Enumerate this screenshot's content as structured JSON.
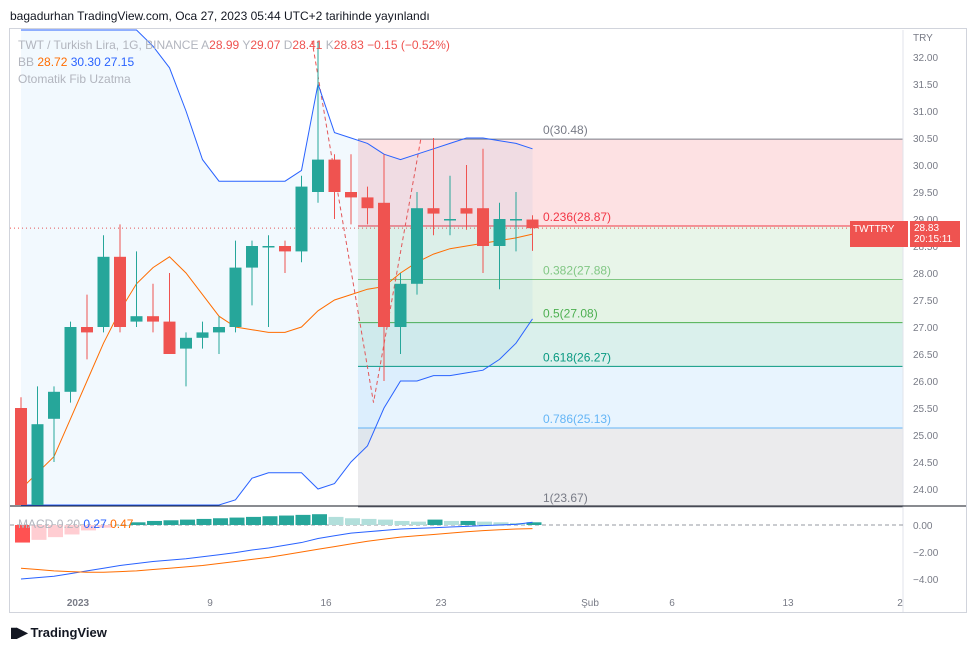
{
  "header": {
    "publish_line": "bagadurhan TradingView.com, Oca 27, 2023 05:44 UTC+2 tarihinde yayınlandı"
  },
  "legend": {
    "symbol": "TWT / Turkish Lira, 1G, BINANCE",
    "o_label": "A",
    "o_value": "28.99",
    "h_label": "Y",
    "h_value": "29.07",
    "l_label": "D",
    "l_value": "28.41",
    "c_label": "K",
    "c_value": "28.83",
    "change": "−0.15 (−0.52%)",
    "bb_label": "BB",
    "bb_basis": "28.72",
    "bb_upper": "30.30",
    "bb_lower": "27.15",
    "fib_label": "Otomatik Fib Uzatma"
  },
  "macd_legend": {
    "label": "MACD",
    "v1": "0.20",
    "v2": "0.27",
    "v3": "0.47"
  },
  "price_tag": {
    "symbol": "TWTTRY",
    "price": "28.83",
    "countdown": "20:15:11"
  },
  "currency": "TRY",
  "footer": {
    "brand": "TradingView"
  },
  "colors": {
    "up": "#26a69a",
    "down": "#ef5350",
    "bb_band": "#2962ff",
    "bb_basis": "#ff6d00",
    "fill": "#2962ff"
  },
  "chart_data": {
    "type": "candlestick",
    "y_axis_ticks": [
      "32.00",
      "31.50",
      "31.00",
      "30.50",
      "30.00",
      "29.50",
      "29.00",
      "28.50",
      "28.00",
      "27.50",
      "27.00",
      "26.50",
      "26.00",
      "25.50",
      "25.00",
      "24.50",
      "24.00"
    ],
    "x_axis_ticks": [
      "2023",
      "9",
      "16",
      "23",
      "Şub",
      "6",
      "13",
      "2"
    ],
    "macd_axis_ticks": [
      "0.00",
      "−2.00",
      "−4.00"
    ],
    "fib_levels": [
      {
        "label": "0(30.48)",
        "value": 30.48,
        "color": "#787b86"
      },
      {
        "label": "0.236(28.87)",
        "value": 28.87,
        "color": "#f23645"
      },
      {
        "label": "0.382(27.88)",
        "value": 27.88,
        "color": "#81c784"
      },
      {
        "label": "0.5(27.08)",
        "value": 27.08,
        "color": "#4caf50"
      },
      {
        "label": "0.618(26.27)",
        "value": 26.27,
        "color": "#089981"
      },
      {
        "label": "0.786(25.13)",
        "value": 25.13,
        "color": "#64b5f6"
      },
      {
        "label": "1(23.67)",
        "value": 23.67,
        "color": "#787b86"
      }
    ],
    "candles": [
      {
        "o": 25.5,
        "h": 25.7,
        "l": 23.7,
        "c": 23.7
      },
      {
        "o": 23.7,
        "h": 25.9,
        "l": 23.7,
        "c": 25.2
      },
      {
        "o": 25.3,
        "h": 25.9,
        "l": 24.5,
        "c": 25.8
      },
      {
        "o": 25.8,
        "h": 27.1,
        "l": 25.6,
        "c": 27.0
      },
      {
        "o": 27.0,
        "h": 27.6,
        "l": 26.4,
        "c": 26.9
      },
      {
        "o": 27.0,
        "h": 28.7,
        "l": 26.9,
        "c": 28.3
      },
      {
        "o": 28.3,
        "h": 28.9,
        "l": 26.9,
        "c": 27.0
      },
      {
        "o": 27.1,
        "h": 28.4,
        "l": 27.0,
        "c": 27.2
      },
      {
        "o": 27.2,
        "h": 27.8,
        "l": 26.9,
        "c": 27.1
      },
      {
        "o": 27.1,
        "h": 28.0,
        "l": 26.5,
        "c": 26.5
      },
      {
        "o": 26.6,
        "h": 26.9,
        "l": 25.9,
        "c": 26.8
      },
      {
        "o": 26.8,
        "h": 27.1,
        "l": 26.6,
        "c": 26.9
      },
      {
        "o": 26.9,
        "h": 27.2,
        "l": 26.5,
        "c": 27.0
      },
      {
        "o": 27.0,
        "h": 28.6,
        "l": 26.9,
        "c": 28.1
      },
      {
        "o": 28.1,
        "h": 28.6,
        "l": 27.4,
        "c": 28.5
      },
      {
        "o": 28.5,
        "h": 28.7,
        "l": 27.0,
        "c": 28.5
      },
      {
        "o": 28.5,
        "h": 28.6,
        "l": 28.0,
        "c": 28.4
      },
      {
        "o": 28.4,
        "h": 29.8,
        "l": 28.2,
        "c": 29.6
      },
      {
        "o": 29.5,
        "h": 32.3,
        "l": 29.3,
        "c": 30.1
      },
      {
        "o": 30.1,
        "h": 30.2,
        "l": 29.0,
        "c": 29.5
      },
      {
        "o": 29.5,
        "h": 30.2,
        "l": 28.9,
        "c": 29.4
      },
      {
        "o": 29.4,
        "h": 29.6,
        "l": 28.9,
        "c": 29.2
      },
      {
        "o": 29.3,
        "h": 30.2,
        "l": 26.0,
        "c": 27.0
      },
      {
        "o": 27.0,
        "h": 28.0,
        "l": 26.5,
        "c": 27.8
      },
      {
        "o": 27.8,
        "h": 29.5,
        "l": 27.6,
        "c": 29.2
      },
      {
        "o": 29.2,
        "h": 30.5,
        "l": 28.7,
        "c": 29.1
      },
      {
        "o": 29.0,
        "h": 29.8,
        "l": 28.7,
        "c": 29.0
      },
      {
        "o": 29.2,
        "h": 30.0,
        "l": 28.8,
        "c": 29.1
      },
      {
        "o": 29.2,
        "h": 30.3,
        "l": 28.0,
        "c": 28.5
      },
      {
        "o": 28.5,
        "h": 29.3,
        "l": 27.7,
        "c": 29.0
      },
      {
        "o": 29.0,
        "h": 29.5,
        "l": 28.4,
        "c": 29.0
      },
      {
        "o": 28.99,
        "h": 29.07,
        "l": 28.41,
        "c": 28.83
      }
    ]
  }
}
